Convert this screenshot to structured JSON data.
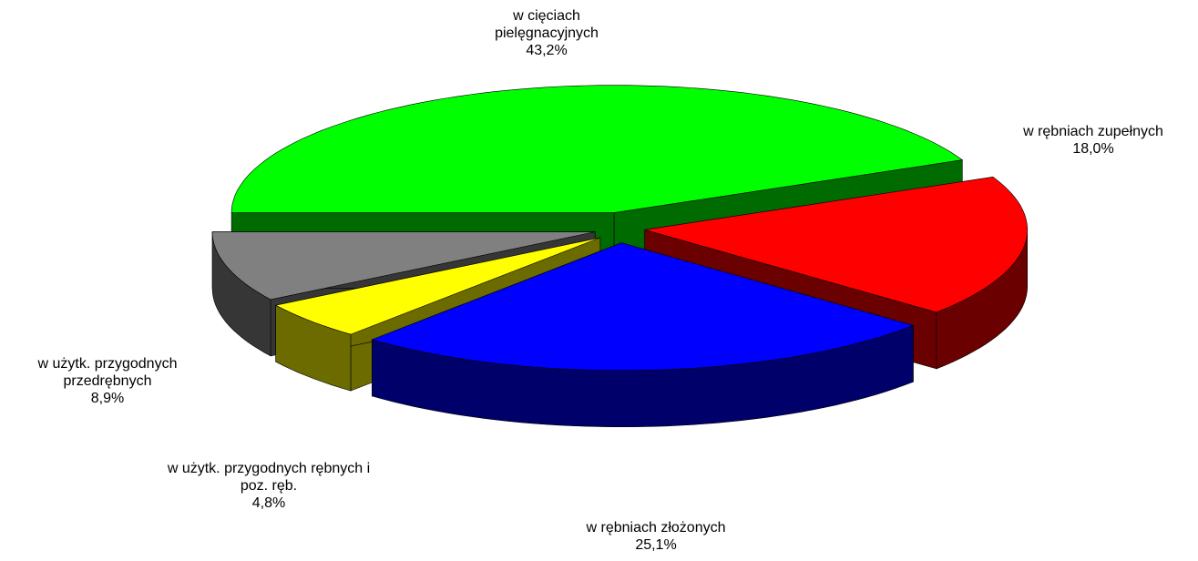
{
  "chart_data": {
    "type": "pie3d",
    "categories": [
      "w cięciach pielęgnacyjnych",
      "w rębniach zupełnych",
      "w rębniach złożonych",
      "w użytk. przygodnych rębnych i poz. ręb.",
      "w użytk. przygodnych przedrębnych"
    ],
    "values": [
      43.2,
      18.0,
      25.1,
      4.8,
      8.9
    ],
    "value_labels": [
      "43,2%",
      "18,0%",
      "25,1%",
      "4,8%",
      "8,9%"
    ],
    "colors": [
      "#00ff00",
      "#ff0000",
      "#0000ff",
      "#ffff00",
      "#808080"
    ]
  }
}
